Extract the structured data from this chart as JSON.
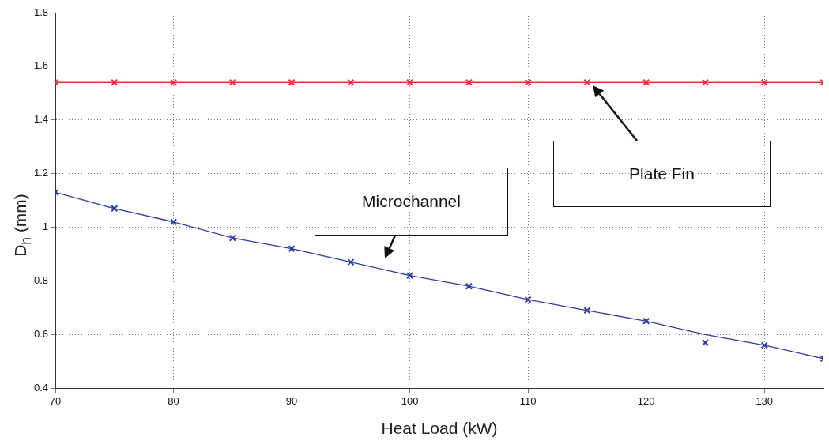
{
  "chart_data": {
    "type": "line",
    "xlabel": "Heat Load (kW)",
    "ylabel": "D$_{h}$ (mm)",
    "x": [
      70,
      75,
      80,
      85,
      90,
      95,
      100,
      105,
      110,
      115,
      120,
      125,
      130,
      135
    ],
    "xlim": [
      70,
      135
    ],
    "xticks": [
      70,
      80,
      90,
      100,
      110,
      120,
      130
    ],
    "ylim": [
      0.4,
      1.8
    ],
    "yticks": [
      0.4,
      0.6,
      0.8,
      1,
      1.2,
      1.4,
      1.6,
      1.8
    ],
    "grid": true,
    "marker": "cross",
    "line_style": "solid",
    "series": [
      {
        "marker": "none",
        "color": "#e8303a",
        "values": [
          1.54,
          1.54,
          1.54,
          1.54,
          1.54,
          1.54,
          1.54,
          1.54,
          1.54,
          1.54,
          1.54,
          1.54,
          1.54,
          1.54
        ]
      },
      {
        "type": "scatter",
        "color": "#e8303a",
        "values": [
          1.54,
          1.54,
          1.54,
          1.54,
          1.54,
          1.54,
          1.54,
          1.54,
          1.54,
          1.54,
          1.54,
          1.54,
          1.54,
          1.54
        ]
      },
      {
        "type": "scatter",
        "color": "#2b3aa8",
        "values": [
          1.13,
          1.07,
          1.02,
          0.96,
          0.92,
          0.87,
          0.82,
          0.78,
          0.73,
          0.69,
          0.65,
          0.57,
          0.56,
          0.51
        ]
      },
      {
        "marker": "none",
        "color": "#2b3aa8",
        "values": [
          1.13,
          1.07,
          1.02,
          0.96,
          0.92,
          0.87,
          0.82,
          0.78,
          0.73,
          0.69,
          0.65,
          0.6,
          0.56,
          0.51
        ]
      }
    ],
    "annotations": [
      "Plate Fin",
      "Microchannel"
    ]
  }
}
